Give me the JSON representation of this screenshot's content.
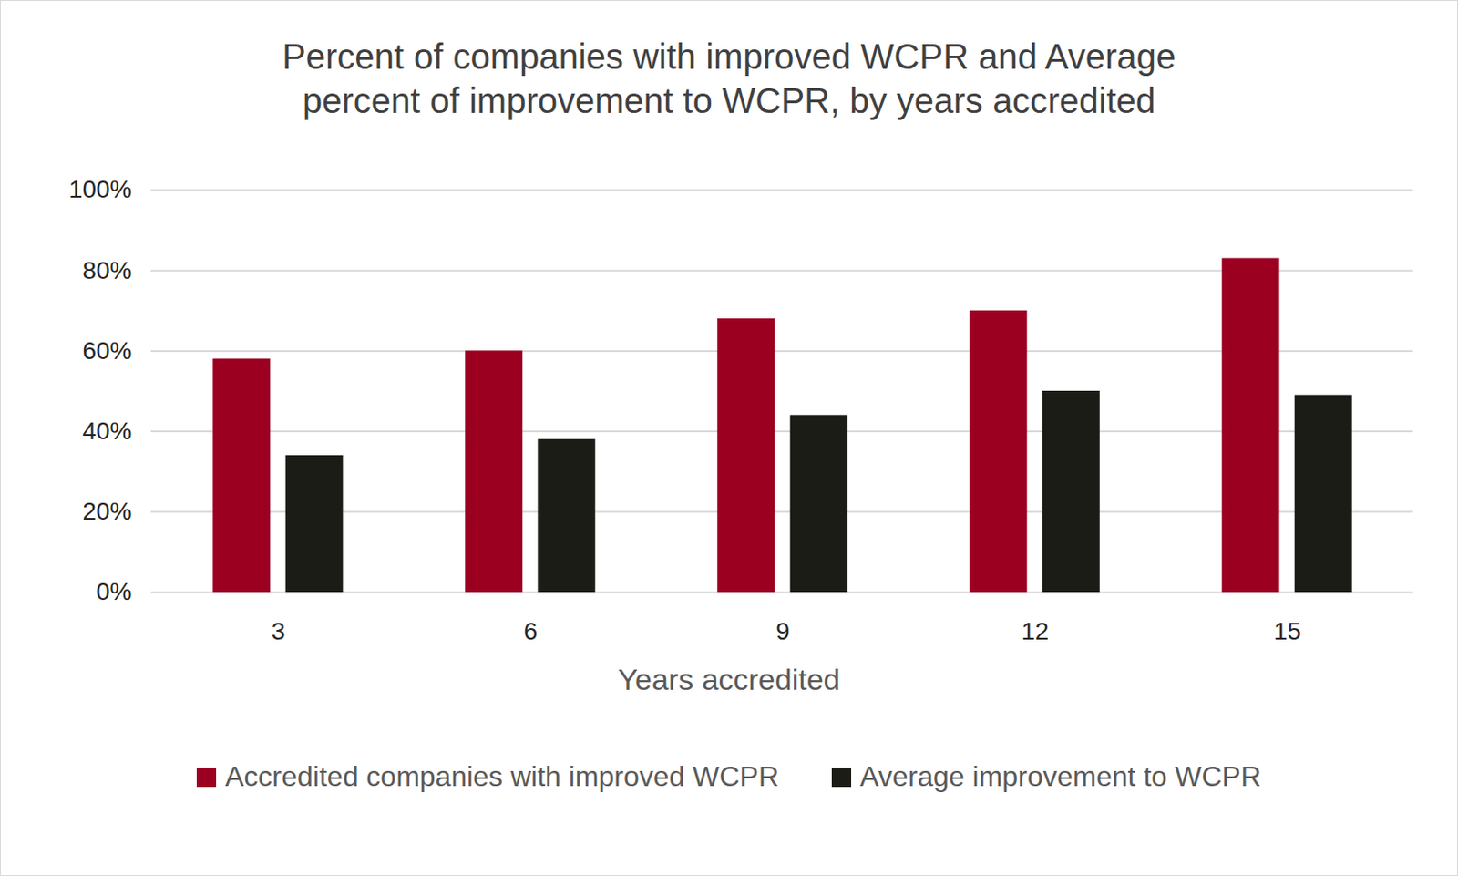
{
  "chart_data": {
    "type": "bar",
    "title": "Percent of companies with improved WCPR and Average percent of improvement to WCPR, by years accredited",
    "x_label": "Years accredited",
    "categories": [
      "3",
      "6",
      "9",
      "12",
      "15"
    ],
    "series": [
      {
        "name": "Accredited companies with improved WCPR",
        "color": "#9b0020",
        "values": [
          58,
          60,
          68,
          70,
          83
        ]
      },
      {
        "name": "Average improvement to WCPR",
        "color": "#1c1c16",
        "values": [
          34,
          38,
          44,
          50,
          49
        ]
      }
    ],
    "ylim": [
      0,
      100
    ],
    "yticks": [
      {
        "value": 0,
        "label": "0%"
      },
      {
        "value": 20,
        "label": "20%"
      },
      {
        "value": 40,
        "label": "40%"
      },
      {
        "value": 60,
        "label": "60%"
      },
      {
        "value": 80,
        "label": "80%"
      },
      {
        "value": 100,
        "label": "100%"
      }
    ],
    "grid": true,
    "legend": "bottom"
  }
}
